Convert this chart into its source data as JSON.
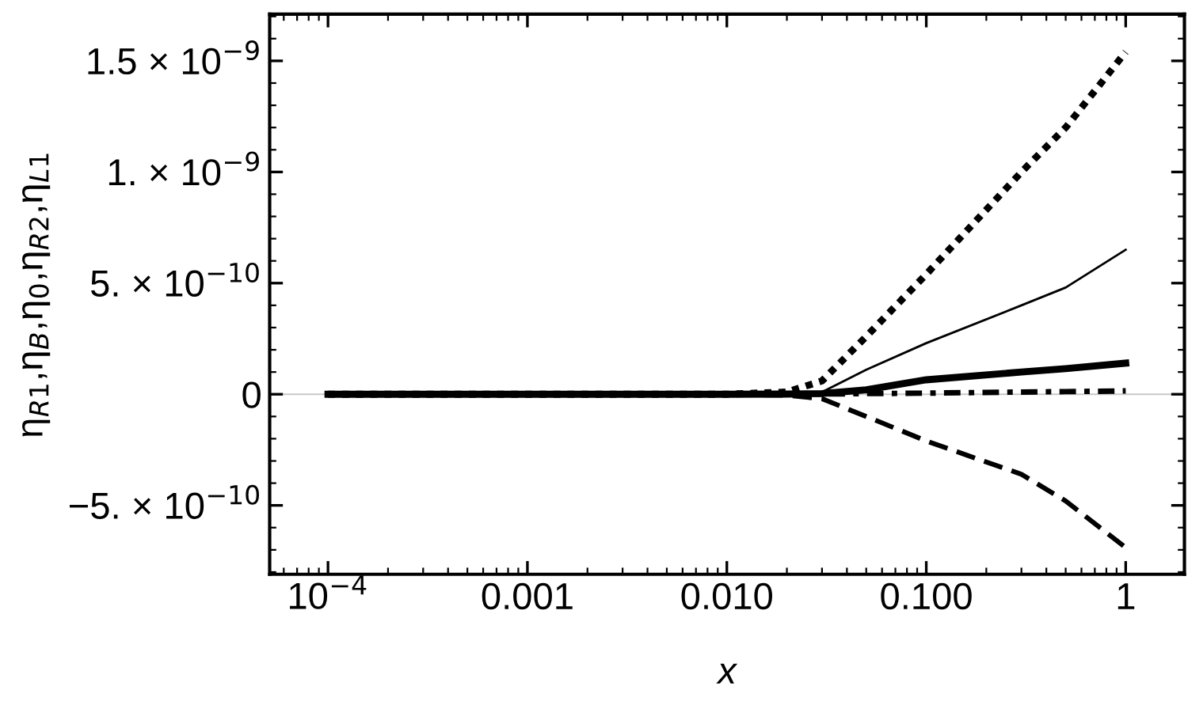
{
  "chart_data": {
    "type": "line",
    "xlabel": "x",
    "ylabel": "η$_{R1}$,η$_{B}$,η$_{0}$,η$_{R2}$,η$_{L1}$",
    "log": "x",
    "x": [
      0.0001,
      0.001,
      0.01,
      0.02,
      0.03,
      0.05,
      0.1,
      0.3,
      0.5,
      1
    ],
    "series": [
      {
        "color": "#000000",
        "line_style": "dotted",
        "values": [
          0,
          0,
          0,
          1e-11,
          6e-11,
          2.6e-10,
          5.4e-10,
          1e-09,
          1.2e-09,
          1.54e-09
        ]
      },
      {
        "color": "#000000",
        "line_style": "solid",
        "values": [
          0,
          0,
          0,
          2e-12,
          1e-11,
          1.1e-10,
          2.3e-10,
          4e-10,
          4.8e-10,
          6.5e-10
        ]
      },
      {
        "color": "#000000",
        "line_style": "solid",
        "values": [
          0,
          0,
          0,
          1e-12,
          3e-12,
          2e-11,
          6.5e-11,
          1e-10,
          1.15e-10,
          1.4e-10
        ]
      },
      {
        "color": "#000000",
        "line_style": "dashdot",
        "values": [
          0,
          0,
          0,
          0,
          1e-12,
          3e-12,
          5e-12,
          1e-11,
          1.2e-11,
          1.5e-11
        ]
      },
      {
        "color": "#000000",
        "line_style": "dashed",
        "values": [
          0,
          0,
          0,
          -5e-12,
          -2e-11,
          -1e-10,
          -2.1e-10,
          -3.6e-10,
          -4.8e-10,
          -6.9e-10
        ]
      }
    ],
    "xlim": [
      5.1e-05,
      1.97
    ],
    "ylim": [
      -8.1e-10,
      1.71e-09
    ],
    "xticks": [
      {
        "value": 0.0001,
        "label": "10$^{−4}$"
      },
      0.001,
      {
        "value": 0.01,
        "label": "0.010"
      },
      {
        "value": 0.1,
        "label": "0.100"
      },
      1
    ],
    "yticks": [
      {
        "value": -5e-10,
        "label": "−5. × 10$^{−10}$"
      },
      0,
      {
        "value": 5e-10,
        "label": "5. × 10$^{−10}$"
      },
      {
        "value": 1e-09,
        "label": "1. × 10$^{−9}$"
      },
      {
        "value": 1.5e-09,
        "label": "1.5 × 10$^{−9}$"
      }
    ],
    "ref_lines": [
      {
        "axis": "y",
        "value": 0,
        "color": "#c8c8c8"
      }
    ],
    "grid": false,
    "legend": false
  }
}
